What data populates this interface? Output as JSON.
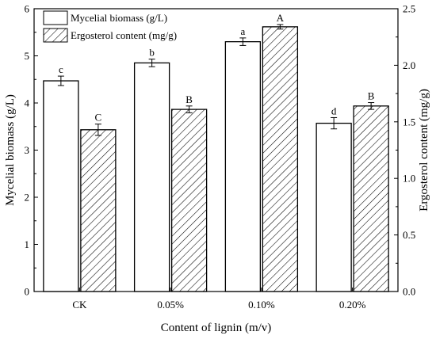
{
  "chart_data": {
    "type": "bar",
    "xlabel": "Content of lignin (m/v)",
    "ylabel": "Mycelial biomass (g/L)",
    "y2label": "Ergosterol content (mg/g)",
    "categories": [
      "CK",
      "0.05%",
      "0.10%",
      "0.20%"
    ],
    "ylim": [
      0,
      6
    ],
    "y2lim": [
      0,
      2.5
    ],
    "yticks": [
      "0",
      "1",
      "2",
      "3",
      "4",
      "5",
      "6"
    ],
    "y2ticks": [
      "0.0",
      "0.5",
      "1.0",
      "1.5",
      "2.0",
      "2.5"
    ],
    "legend_position": "top-left",
    "series": [
      {
        "name": "Mycelial biomass (g/L)",
        "axis": "left",
        "fill": "plain",
        "values": [
          4.47,
          4.85,
          5.3,
          3.57
        ],
        "errors": [
          0.1,
          0.08,
          0.08,
          0.12
        ],
        "letters": [
          "c",
          "b",
          "a",
          "d"
        ]
      },
      {
        "name": "Ergosterol content (mg/g)",
        "axis": "right",
        "fill": "hatched",
        "values": [
          1.43,
          1.61,
          2.34,
          1.64
        ],
        "errors": [
          0.05,
          0.03,
          0.02,
          0.03
        ],
        "letters": [
          "C",
          "B",
          "A",
          "B"
        ]
      }
    ]
  }
}
